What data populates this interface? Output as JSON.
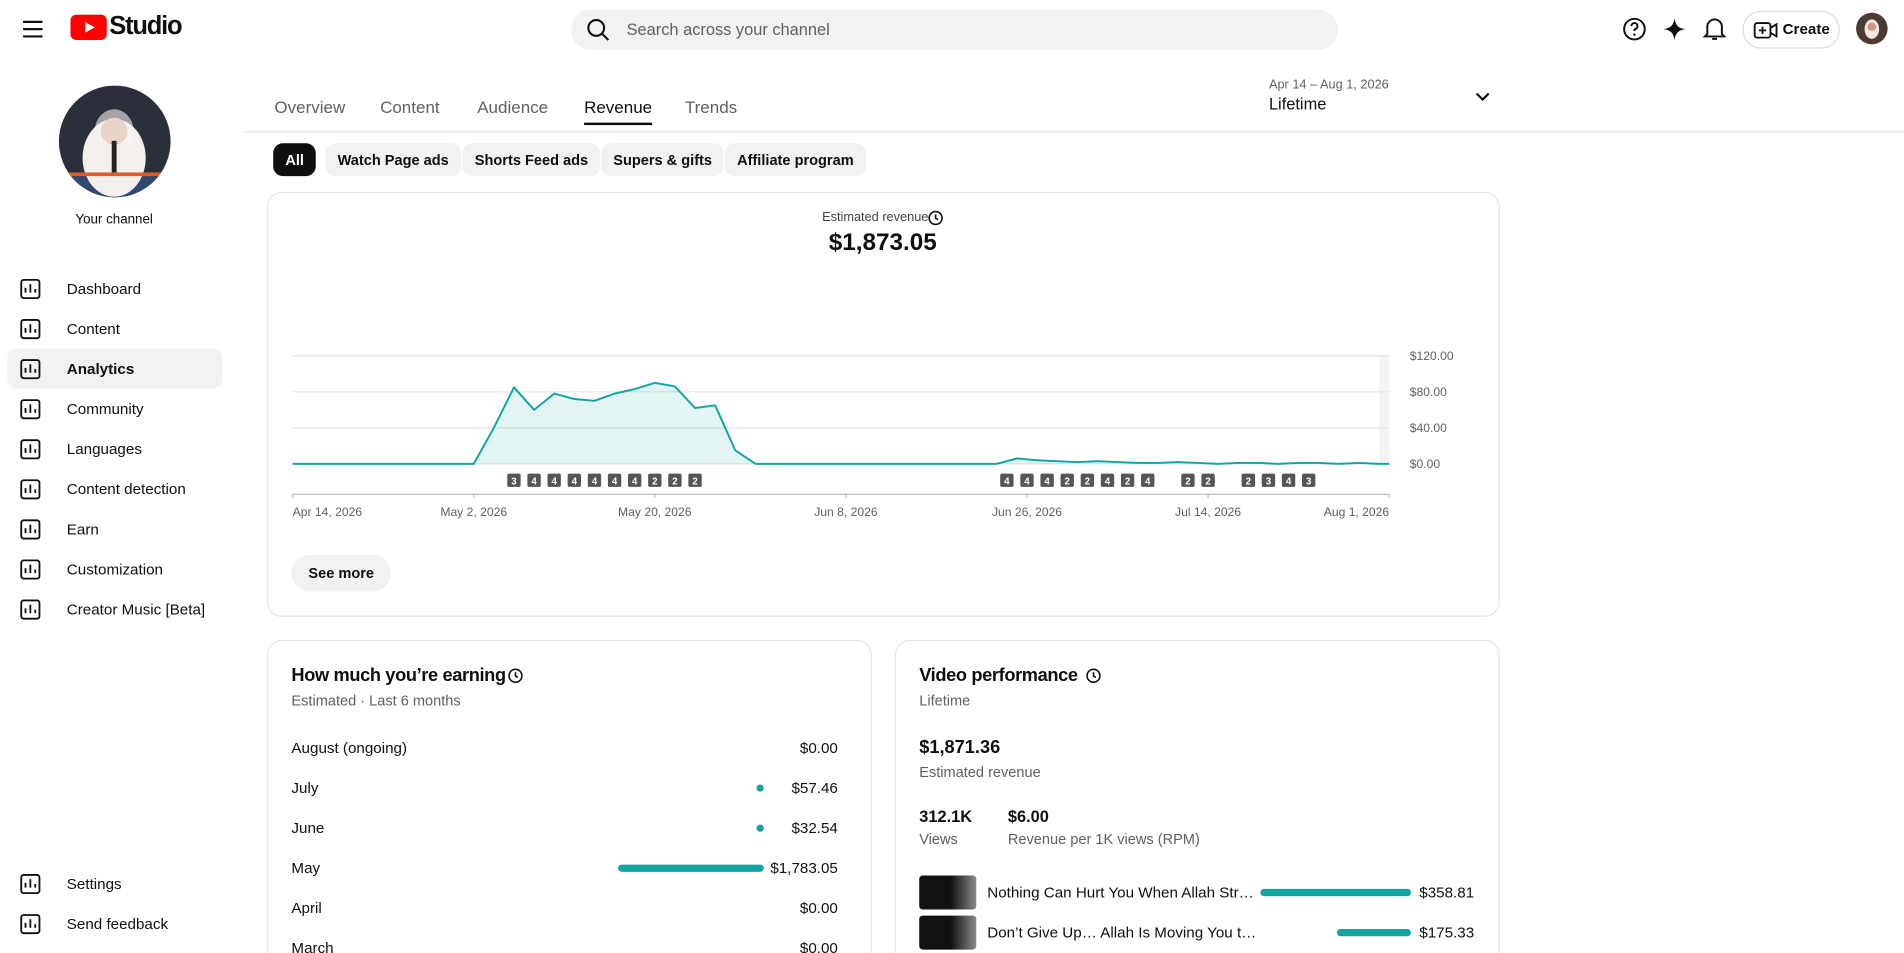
{
  "header": {
    "logo": "Studio",
    "search_placeholder": "Search across your channel",
    "create": "Create"
  },
  "sidebar": {
    "channel": "Your channel",
    "items": [
      "Dashboard",
      "Content",
      "Analytics",
      "Community",
      "Languages",
      "Content detection",
      "Earn",
      "Customization",
      "Creator Music [Beta]"
    ],
    "active": 2,
    "bottom": [
      "Settings",
      "Send feedback"
    ]
  },
  "tabs": {
    "items": [
      "Overview",
      "Content",
      "Audience",
      "Revenue",
      "Trends"
    ],
    "active": 3
  },
  "date_range": {
    "range": "Apr 14 – Aug 1, 2026",
    "label": "Lifetime"
  },
  "filters": {
    "items": [
      "All",
      "Watch Page ads",
      "Shorts Feed ads",
      "Supers & gifts",
      "Affiliate program"
    ],
    "active": 0
  },
  "revenue_card": {
    "label": "Estimated revenue",
    "total": "$1,873.05",
    "see_more": "See more"
  },
  "chart_data": {
    "type": "line",
    "color": "#12a4a0",
    "x": [
      "2026-04-14",
      "2026-04-16",
      "2026-04-18",
      "2026-04-20",
      "2026-04-22",
      "2026-04-24",
      "2026-04-26",
      "2026-04-28",
      "2026-04-30",
      "2026-05-02",
      "2026-05-04",
      "2026-05-06",
      "2026-05-08",
      "2026-05-10",
      "2026-05-12",
      "2026-05-14",
      "2026-05-16",
      "2026-05-18",
      "2026-05-20",
      "2026-05-22",
      "2026-05-24",
      "2026-05-26",
      "2026-05-28",
      "2026-05-30",
      "2026-06-01",
      "2026-06-03",
      "2026-06-05",
      "2026-06-07",
      "2026-06-09",
      "2026-06-11",
      "2026-06-13",
      "2026-06-15",
      "2026-06-17",
      "2026-06-19",
      "2026-06-21",
      "2026-06-23",
      "2026-06-25",
      "2026-06-27",
      "2026-06-29",
      "2026-07-01",
      "2026-07-03",
      "2026-07-05",
      "2026-07-07",
      "2026-07-09",
      "2026-07-11",
      "2026-07-13",
      "2026-07-15",
      "2026-07-17",
      "2026-07-19",
      "2026-07-21",
      "2026-07-23",
      "2026-07-25",
      "2026-07-27",
      "2026-07-29",
      "2026-07-31",
      "2026-08-01"
    ],
    "values": [
      0,
      0,
      0,
      0,
      0,
      0,
      0,
      0,
      0,
      0,
      40,
      85,
      60,
      78,
      72,
      70,
      78,
      83,
      90,
      86,
      62,
      65,
      15,
      0,
      0,
      0,
      0,
      0,
      0,
      0,
      0,
      0,
      0,
      0,
      0,
      0,
      6,
      4,
      3,
      2,
      3,
      2,
      1,
      1,
      2,
      1,
      0,
      1,
      1,
      0,
      1,
      1,
      0,
      1,
      0,
      0
    ],
    "xlim": [
      "2026-04-14",
      "2026-08-01"
    ],
    "xticks": [
      {
        "value": "2026-04-14",
        "label": "Apr 14, 2026"
      },
      {
        "value": "2026-05-02",
        "label": "May 2, 2026"
      },
      {
        "value": "2026-05-20",
        "label": "May 20, 2026"
      },
      {
        "value": "2026-06-08",
        "label": "Jun 8, 2026"
      },
      {
        "value": "2026-06-26",
        "label": "Jun 26, 2026"
      },
      {
        "value": "2026-07-14",
        "label": "Jul 14, 2026"
      },
      {
        "value": "2026-08-01",
        "label": "Aug 1, 2026"
      }
    ],
    "ylim": [
      0,
      120
    ],
    "yticks": [
      {
        "value": 0,
        "label": "$0.00"
      },
      {
        "value": 40,
        "label": "$40.00"
      },
      {
        "value": 80,
        "label": "$80.00"
      },
      {
        "value": 120,
        "label": "$120.00"
      }
    ],
    "grid": true,
    "markers": {
      "x": [
        "2026-05-06",
        "2026-05-08",
        "2026-05-10",
        "2026-05-12",
        "2026-05-14",
        "2026-05-16",
        "2026-05-18",
        "2026-05-20",
        "2026-05-22",
        "2026-05-24",
        "2026-06-24",
        "2026-06-26",
        "2026-06-28",
        "2026-06-30",
        "2026-07-02",
        "2026-07-04",
        "2026-07-06",
        "2026-07-08",
        "2026-07-12",
        "2026-07-14",
        "2026-07-18",
        "2026-07-20",
        "2026-07-22",
        "2026-07-24"
      ],
      "values": [
        3,
        4,
        4,
        4,
        4,
        4,
        4,
        2,
        2,
        2,
        4,
        4,
        4,
        2,
        2,
        4,
        2,
        4,
        2,
        2,
        2,
        3,
        4,
        3
      ]
    }
  },
  "earnings": {
    "title": "How much you’re earning",
    "subtitle": "Estimated · Last 6 months",
    "color": "#12a4a0",
    "rows": [
      {
        "month": "August (ongoing)",
        "value": 0,
        "value_label": "$0.00"
      },
      {
        "month": "July",
        "value": 57.46,
        "value_label": "$57.46"
      },
      {
        "month": "June",
        "value": 32.54,
        "value_label": "$32.54"
      },
      {
        "month": "May",
        "value": 1783.05,
        "value_label": "$1,783.05"
      },
      {
        "month": "April",
        "value": 0,
        "value_label": "$0.00"
      },
      {
        "month": "March",
        "value": 0,
        "value_label": "$0.00"
      }
    ]
  },
  "video_performance": {
    "title": "Video performance",
    "subtitle": "Lifetime",
    "revenue": "$1,871.36",
    "revenue_label": "Estimated revenue",
    "views": "312.1K",
    "views_label": "Views",
    "rpm": "$6.00",
    "rpm_label": "Revenue per 1K views (RPM)",
    "color": "#12a4a0",
    "videos": [
      {
        "title": "Nothing Can Hurt You When Allah Str…",
        "value": 358.81,
        "value_label": "$358.81"
      },
      {
        "title": "Don’t Give Up… Allah Is Moving You t…",
        "value": 175.33,
        "value_label": "$175.33"
      }
    ]
  }
}
